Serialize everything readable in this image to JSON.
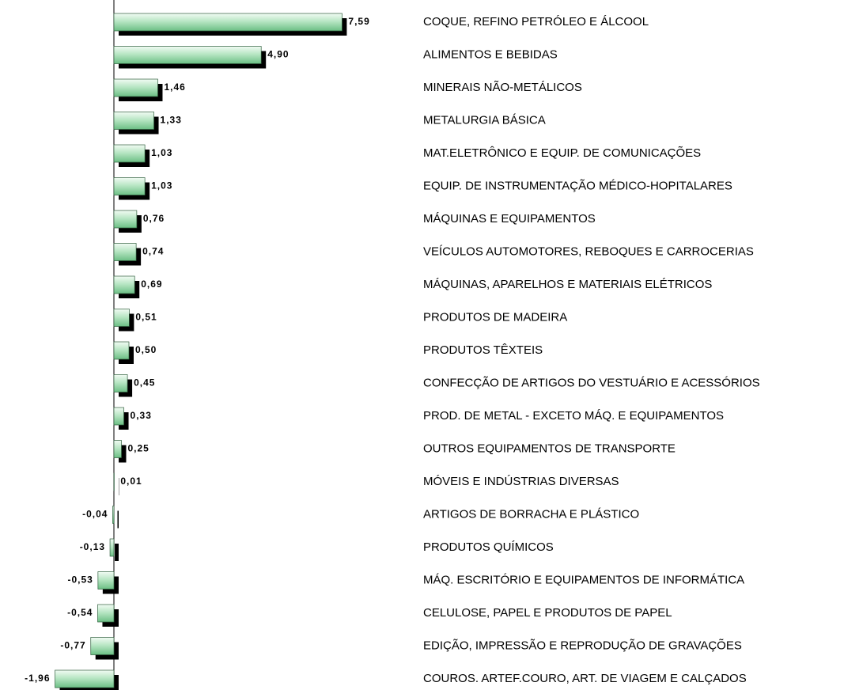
{
  "chart_data": {
    "type": "barh",
    "categories": [
      "COQUE,  REFINO PETRÓLEO E ÁLCOOL",
      "ALIMENTOS E BEBIDAS",
      "MINERAIS NÃO-METÁLICOS",
      "METALURGIA BÁSICA",
      "MAT.ELETRÔNICO E EQUIP. DE COMUNICAÇÕES",
      "EQUIP. DE INSTRUMENTAÇÃO MÉDICO-HOPITALARES",
      "MÁQUINAS E EQUIPAMENTOS",
      "VEÍCULOS AUTOMOTORES, REBOQUES E CARROCERIAS",
      "MÁQUINAS, APARELHOS E MATERIAIS ELÉTRICOS",
      "PRODUTOS DE MADEIRA",
      "PRODUTOS TÊXTEIS",
      "CONFECÇÃO DE ARTIGOS DO VESTUÁRIO E ACESSÓRIOS",
      "PROD. DE METAL - EXCETO MÁQ. E EQUIPAMENTOS",
      "OUTROS EQUIPAMENTOS DE TRANSPORTE",
      "MÓVEIS E INDÚSTRIAS DIVERSAS",
      "ARTIGOS DE BORRACHA E PLÁSTICO",
      "PRODUTOS QUÍMICOS",
      "MÁQ. ESCRITÓRIO E EQUIPAMENTOS DE INFORMÁTICA",
      "CELULOSE, PAPEL E PRODUTOS DE PAPEL",
      "EDIÇÃO, IMPRESSÃO E REPRODUÇÃO DE GRAVAÇÕES",
      "COUROS. ARTEF.COURO, ART. DE VIAGEM E CALÇADOS"
    ],
    "values": [
      7.59,
      4.9,
      1.46,
      1.33,
      1.03,
      1.03,
      0.76,
      0.74,
      0.69,
      0.51,
      0.5,
      0.45,
      0.33,
      0.25,
      0.01,
      -0.04,
      -0.13,
      -0.53,
      -0.54,
      -0.77,
      -1.96
    ],
    "value_labels": [
      "7,59",
      "4,90",
      "1,46",
      "1,33",
      "1,03",
      "1,03",
      "0,76",
      "0,74",
      "0,69",
      "0,51",
      "0,50",
      "0,45",
      "0,33",
      "0,25",
      "0,01",
      "-0,04",
      "-0,13",
      "-0,53",
      "-0,54",
      "-0,77",
      "-1,96"
    ],
    "xlim": [
      -2,
      8
    ],
    "color": "#9fdcaf"
  }
}
